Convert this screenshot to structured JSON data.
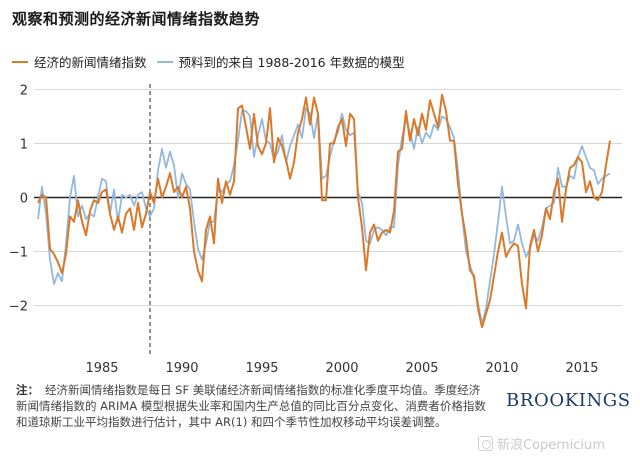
{
  "title": "观察和预测的经济新闻情绪指数趋势",
  "chart_data": {
    "type": "line",
    "xlim": [
      1980.75,
      2017.5
    ],
    "ylim": [
      -2.6,
      2.1
    ],
    "x_ticks": [
      1985,
      1990,
      1995,
      2000,
      2005,
      2010,
      2015
    ],
    "x_tick_labels": [
      "1985",
      "1990",
      "1995",
      "2000",
      "2005",
      "2010",
      "2015"
    ],
    "y_ticks": [
      2,
      1,
      0,
      -1,
      -2
    ],
    "y_tick_labels": [
      "2",
      "1",
      "0",
      "−1",
      "−2"
    ],
    "grid": "horizontal",
    "zero_line": true,
    "vertical_marker": 1988.0,
    "legend_position": "top-left",
    "series": [
      {
        "name": "经济的新闻情绪指数",
        "color": "#d9792a",
        "points": [
          [
            1981.0,
            -0.1
          ],
          [
            1981.25,
            0.05
          ],
          [
            1981.5,
            0.0
          ],
          [
            1981.75,
            -0.95
          ],
          [
            1982.0,
            -1.05
          ],
          [
            1982.25,
            -1.2
          ],
          [
            1982.5,
            -1.4
          ],
          [
            1982.75,
            -1.05
          ],
          [
            1983.0,
            -0.35
          ],
          [
            1983.25,
            -0.45
          ],
          [
            1983.5,
            -0.05
          ],
          [
            1983.75,
            -0.45
          ],
          [
            1984.0,
            -0.7
          ],
          [
            1984.25,
            -0.25
          ],
          [
            1984.5,
            -0.05
          ],
          [
            1984.75,
            -0.1
          ],
          [
            1985.0,
            0.1
          ],
          [
            1985.25,
            0.15
          ],
          [
            1985.5,
            -0.3
          ],
          [
            1985.75,
            -0.6
          ],
          [
            1986.0,
            -0.35
          ],
          [
            1986.25,
            -0.65
          ],
          [
            1986.5,
            -0.3
          ],
          [
            1986.75,
            -0.2
          ],
          [
            1987.0,
            -0.6
          ],
          [
            1987.25,
            -0.1
          ],
          [
            1987.5,
            -0.55
          ],
          [
            1987.75,
            -0.3
          ],
          [
            1988.0,
            0.1
          ],
          [
            1988.25,
            -0.1
          ],
          [
            1988.5,
            0.35
          ],
          [
            1988.75,
            0.0
          ],
          [
            1989.0,
            0.2
          ],
          [
            1989.25,
            0.45
          ],
          [
            1989.5,
            0.1
          ],
          [
            1989.75,
            0.2
          ],
          [
            1990.0,
            0.0
          ],
          [
            1990.25,
            0.2
          ],
          [
            1990.5,
            -0.2
          ],
          [
            1990.75,
            -1.0
          ],
          [
            1991.0,
            -1.35
          ],
          [
            1991.25,
            -1.55
          ],
          [
            1991.5,
            -0.6
          ],
          [
            1991.75,
            -0.35
          ],
          [
            1992.0,
            -0.85
          ],
          [
            1992.25,
            0.35
          ],
          [
            1992.5,
            -0.1
          ],
          [
            1992.75,
            0.3
          ],
          [
            1993.0,
            0.05
          ],
          [
            1993.25,
            0.3
          ],
          [
            1993.5,
            1.65
          ],
          [
            1993.75,
            1.7
          ],
          [
            1994.0,
            1.3
          ],
          [
            1994.25,
            0.9
          ],
          [
            1994.5,
            1.55
          ],
          [
            1994.75,
            0.95
          ],
          [
            1995.0,
            0.8
          ],
          [
            1995.25,
            1.0
          ],
          [
            1995.5,
            1.65
          ],
          [
            1995.75,
            0.65
          ],
          [
            1996.0,
            1.1
          ],
          [
            1996.25,
            0.95
          ],
          [
            1996.5,
            0.7
          ],
          [
            1996.75,
            0.35
          ],
          [
            1997.0,
            0.65
          ],
          [
            1997.25,
            1.2
          ],
          [
            1997.5,
            1.45
          ],
          [
            1997.75,
            1.85
          ],
          [
            1998.0,
            1.35
          ],
          [
            1998.25,
            1.85
          ],
          [
            1998.5,
            1.55
          ],
          [
            1998.75,
            -0.05
          ],
          [
            1999.0,
            -0.05
          ],
          [
            1999.25,
            1.0
          ],
          [
            1999.5,
            1.0
          ],
          [
            1999.75,
            1.3
          ],
          [
            2000.0,
            1.45
          ],
          [
            2000.25,
            0.95
          ],
          [
            2000.5,
            1.55
          ],
          [
            2000.75,
            1.45
          ],
          [
            2001.0,
            0.0
          ],
          [
            2001.25,
            -0.55
          ],
          [
            2001.5,
            -1.35
          ],
          [
            2001.75,
            -0.65
          ],
          [
            2002.0,
            -0.5
          ],
          [
            2002.25,
            -0.8
          ],
          [
            2002.5,
            -0.65
          ],
          [
            2002.75,
            -0.6
          ],
          [
            2003.0,
            -0.65
          ],
          [
            2003.25,
            -0.25
          ],
          [
            2003.5,
            0.85
          ],
          [
            2003.75,
            0.9
          ],
          [
            2004.0,
            1.6
          ],
          [
            2004.25,
            1.05
          ],
          [
            2004.5,
            1.45
          ],
          [
            2004.75,
            1.15
          ],
          [
            2005.0,
            1.55
          ],
          [
            2005.25,
            1.25
          ],
          [
            2005.5,
            1.8
          ],
          [
            2005.75,
            1.55
          ],
          [
            2006.0,
            1.3
          ],
          [
            2006.25,
            1.9
          ],
          [
            2006.5,
            1.6
          ],
          [
            2006.75,
            1.05
          ],
          [
            2007.0,
            1.05
          ],
          [
            2007.25,
            0.25
          ],
          [
            2007.5,
            -0.3
          ],
          [
            2007.75,
            -0.75
          ],
          [
            2008.0,
            -1.35
          ],
          [
            2008.25,
            -1.45
          ],
          [
            2008.5,
            -2.05
          ],
          [
            2008.75,
            -2.4
          ],
          [
            2009.0,
            -2.15
          ],
          [
            2009.25,
            -1.9
          ],
          [
            2009.5,
            -1.45
          ],
          [
            2009.75,
            -1.0
          ],
          [
            2010.0,
            -0.65
          ],
          [
            2010.25,
            -1.1
          ],
          [
            2010.5,
            -0.95
          ],
          [
            2010.75,
            -0.85
          ],
          [
            2011.0,
            -0.9
          ],
          [
            2011.25,
            -1.6
          ],
          [
            2011.5,
            -2.05
          ],
          [
            2011.75,
            -0.9
          ],
          [
            2012.0,
            -0.6
          ],
          [
            2012.25,
            -1.0
          ],
          [
            2012.5,
            -0.7
          ],
          [
            2012.75,
            -0.2
          ],
          [
            2013.0,
            -0.4
          ],
          [
            2013.25,
            0.1
          ],
          [
            2013.5,
            0.35
          ],
          [
            2013.75,
            -0.45
          ],
          [
            2014.0,
            0.15
          ],
          [
            2014.25,
            0.55
          ],
          [
            2014.5,
            0.6
          ],
          [
            2014.75,
            0.75
          ],
          [
            2015.0,
            0.65
          ],
          [
            2015.25,
            0.1
          ],
          [
            2015.5,
            0.3
          ],
          [
            2015.75,
            0.0
          ],
          [
            2016.0,
            -0.05
          ],
          [
            2016.25,
            0.1
          ],
          [
            2016.5,
            0.6
          ],
          [
            2016.75,
            1.05
          ]
        ]
      },
      {
        "name": "预料到的来自 1988-2016 年数据的模型",
        "color": "#94b8db",
        "points": [
          [
            1981.0,
            -0.4
          ],
          [
            1981.25,
            0.2
          ],
          [
            1981.5,
            -0.3
          ],
          [
            1981.75,
            -1.15
          ],
          [
            1982.0,
            -1.6
          ],
          [
            1982.25,
            -1.4
          ],
          [
            1982.5,
            -1.55
          ],
          [
            1982.75,
            -0.85
          ],
          [
            1983.0,
            0.0
          ],
          [
            1983.25,
            0.4
          ],
          [
            1983.5,
            -0.35
          ],
          [
            1983.75,
            -0.15
          ],
          [
            1984.0,
            -0.4
          ],
          [
            1984.25,
            -0.3
          ],
          [
            1984.5,
            -0.35
          ],
          [
            1984.75,
            0.0
          ],
          [
            1985.0,
            0.35
          ],
          [
            1985.25,
            0.3
          ],
          [
            1985.5,
            -0.3
          ],
          [
            1985.75,
            0.15
          ],
          [
            1986.0,
            -0.45
          ],
          [
            1986.25,
            0.05
          ],
          [
            1986.5,
            0.0
          ],
          [
            1986.75,
            0.05
          ],
          [
            1987.0,
            -0.15
          ],
          [
            1987.25,
            0.05
          ],
          [
            1987.5,
            0.1
          ],
          [
            1987.75,
            -0.2
          ],
          [
            1988.0,
            -0.35
          ],
          [
            1988.25,
            -0.2
          ],
          [
            1988.5,
            0.5
          ],
          [
            1988.75,
            0.9
          ],
          [
            1989.0,
            0.55
          ],
          [
            1989.25,
            0.85
          ],
          [
            1989.5,
            0.6
          ],
          [
            1989.75,
            0.0
          ],
          [
            1990.0,
            0.45
          ],
          [
            1990.25,
            0.25
          ],
          [
            1990.5,
            0.15
          ],
          [
            1990.75,
            -0.45
          ],
          [
            1991.0,
            -0.95
          ],
          [
            1991.25,
            -1.15
          ],
          [
            1991.5,
            -0.85
          ],
          [
            1991.75,
            -0.45
          ],
          [
            1992.0,
            -0.45
          ],
          [
            1992.25,
            0.15
          ],
          [
            1992.5,
            0.1
          ],
          [
            1992.75,
            0.25
          ],
          [
            1993.0,
            0.3
          ],
          [
            1993.25,
            0.6
          ],
          [
            1993.5,
            1.05
          ],
          [
            1993.75,
            1.6
          ],
          [
            1994.0,
            1.6
          ],
          [
            1994.25,
            1.5
          ],
          [
            1994.5,
            0.75
          ],
          [
            1994.75,
            1.15
          ],
          [
            1995.0,
            1.45
          ],
          [
            1995.25,
            1.05
          ],
          [
            1995.5,
            1.0
          ],
          [
            1995.75,
            0.7
          ],
          [
            1996.0,
            0.85
          ],
          [
            1996.25,
            1.15
          ],
          [
            1996.5,
            0.65
          ],
          [
            1996.75,
            0.95
          ],
          [
            1997.0,
            1.15
          ],
          [
            1997.25,
            1.35
          ],
          [
            1997.5,
            1.1
          ],
          [
            1997.75,
            1.65
          ],
          [
            1998.0,
            1.55
          ],
          [
            1998.25,
            1.1
          ],
          [
            1998.5,
            1.55
          ],
          [
            1998.75,
            0.35
          ],
          [
            1999.0,
            0.4
          ],
          [
            1999.25,
            0.75
          ],
          [
            1999.5,
            1.05
          ],
          [
            1999.75,
            1.2
          ],
          [
            2000.0,
            1.55
          ],
          [
            2000.25,
            1.25
          ],
          [
            2000.5,
            1.15
          ],
          [
            2000.75,
            1.2
          ],
          [
            2001.0,
            0.1
          ],
          [
            2001.25,
            -0.1
          ],
          [
            2001.5,
            -0.8
          ],
          [
            2001.75,
            -0.85
          ],
          [
            2002.0,
            -0.6
          ],
          [
            2002.25,
            -0.55
          ],
          [
            2002.5,
            -0.6
          ],
          [
            2002.75,
            -0.7
          ],
          [
            2003.0,
            -0.55
          ],
          [
            2003.25,
            -0.55
          ],
          [
            2003.5,
            0.6
          ],
          [
            2003.75,
            1.1
          ],
          [
            2004.0,
            1.45
          ],
          [
            2004.25,
            1.2
          ],
          [
            2004.5,
            0.9
          ],
          [
            2004.75,
            1.3
          ],
          [
            2005.0,
            1.0
          ],
          [
            2005.25,
            1.2
          ],
          [
            2005.5,
            1.1
          ],
          [
            2005.75,
            1.35
          ],
          [
            2006.0,
            1.25
          ],
          [
            2006.25,
            1.5
          ],
          [
            2006.5,
            1.45
          ],
          [
            2006.75,
            1.3
          ],
          [
            2007.0,
            1.1
          ],
          [
            2007.25,
            0.5
          ],
          [
            2007.5,
            -0.3
          ],
          [
            2007.75,
            -1.0
          ],
          [
            2008.0,
            -1.25
          ],
          [
            2008.25,
            -1.5
          ],
          [
            2008.5,
            -1.95
          ],
          [
            2008.75,
            -2.35
          ],
          [
            2009.0,
            -2.05
          ],
          [
            2009.25,
            -1.55
          ],
          [
            2009.5,
            -1.05
          ],
          [
            2009.75,
            -0.45
          ],
          [
            2010.0,
            0.2
          ],
          [
            2010.25,
            -0.35
          ],
          [
            2010.5,
            -0.85
          ],
          [
            2010.75,
            -0.8
          ],
          [
            2011.0,
            -0.5
          ],
          [
            2011.25,
            -0.85
          ],
          [
            2011.5,
            -1.1
          ],
          [
            2011.75,
            -0.95
          ],
          [
            2012.0,
            -0.7
          ],
          [
            2012.25,
            -0.8
          ],
          [
            2012.5,
            -0.55
          ],
          [
            2012.75,
            -0.2
          ],
          [
            2013.0,
            -0.15
          ],
          [
            2013.25,
            -0.1
          ],
          [
            2013.5,
            0.55
          ],
          [
            2013.75,
            0.2
          ],
          [
            2014.0,
            0.2
          ],
          [
            2014.25,
            0.4
          ],
          [
            2014.5,
            0.35
          ],
          [
            2014.75,
            0.75
          ],
          [
            2015.0,
            0.95
          ],
          [
            2015.25,
            0.75
          ],
          [
            2015.5,
            0.55
          ],
          [
            2015.75,
            0.5
          ],
          [
            2016.0,
            0.25
          ],
          [
            2016.25,
            0.35
          ],
          [
            2016.5,
            0.4
          ],
          [
            2016.75,
            0.45
          ]
        ]
      }
    ]
  },
  "note": {
    "label": "注：",
    "text": "经济新闻情绪指数是每日 SF 美联储经济新闻情绪指数的标准化季度平均值。季度经济新闻情绪指数的 ARIMA 模型根据失业率和国内生产总值的同比百分点变化、消费者价格指数和道琼斯工业平均指数进行估计，其中 AR(1) 和四个季节性加权移动平均误差调整。"
  },
  "brand": "BROOKINGS",
  "watermark": "新浪Copernicium"
}
